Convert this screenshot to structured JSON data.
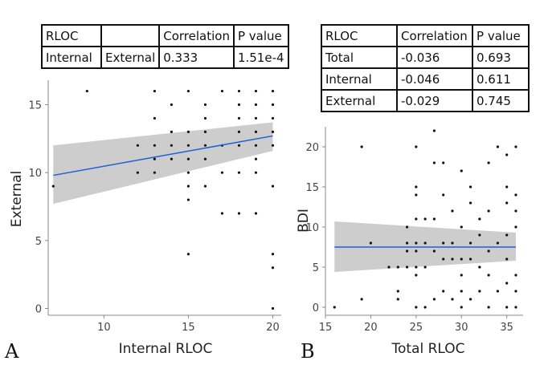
{
  "tableA": {
    "header": [
      "RLOC",
      "",
      "Correlation",
      "P value"
    ],
    "row": [
      "Internal",
      "External",
      "0.333",
      "1.51e-4"
    ]
  },
  "tableB": {
    "header": [
      "RLOC",
      "Correlation",
      "P value"
    ],
    "rows": [
      [
        "Total",
        "-0.036",
        "0.693"
      ],
      [
        "Internal",
        "-0.046",
        "0.611"
      ],
      [
        "External",
        "-0.029",
        "0.745"
      ]
    ]
  },
  "chart_data": [
    {
      "type": "scatter",
      "panel": "A",
      "xlabel": "Internal RLOC",
      "ylabel": "External",
      "xlim": [
        6.7,
        20.5
      ],
      "ylim": [
        -0.5,
        16.8
      ],
      "xticks": [
        10,
        15,
        20
      ],
      "yticks": [
        0,
        5,
        10,
        15
      ],
      "grid": false,
      "fit": {
        "x": [
          7,
          20
        ],
        "y": [
          9.8,
          12.7
        ],
        "ci_low": [
          7.7,
          11.6
        ],
        "ci_high": [
          12.0,
          13.7
        ]
      },
      "points": [
        [
          7,
          9
        ],
        [
          9,
          16
        ],
        [
          12,
          10
        ],
        [
          12,
          12
        ],
        [
          13,
          10
        ],
        [
          13,
          11
        ],
        [
          13,
          12
        ],
        [
          13,
          14
        ],
        [
          13,
          16
        ],
        [
          14,
          11
        ],
        [
          14,
          12
        ],
        [
          14,
          13
        ],
        [
          14,
          15
        ],
        [
          15,
          4
        ],
        [
          15,
          8
        ],
        [
          15,
          9
        ],
        [
          15,
          10
        ],
        [
          15,
          11
        ],
        [
          15,
          12
        ],
        [
          15,
          13
        ],
        [
          15,
          16
        ],
        [
          16,
          9
        ],
        [
          16,
          11
        ],
        [
          16,
          12
        ],
        [
          16,
          13
        ],
        [
          16,
          14
        ],
        [
          16,
          15
        ],
        [
          17,
          7
        ],
        [
          17,
          10
        ],
        [
          17,
          12
        ],
        [
          17,
          16
        ],
        [
          18,
          7
        ],
        [
          18,
          10
        ],
        [
          18,
          12
        ],
        [
          18,
          13
        ],
        [
          18,
          14
        ],
        [
          18,
          15
        ],
        [
          18,
          16
        ],
        [
          19,
          7
        ],
        [
          19,
          10
        ],
        [
          19,
          11
        ],
        [
          19,
          12
        ],
        [
          19,
          13
        ],
        [
          19,
          14
        ],
        [
          19,
          15
        ],
        [
          19,
          16
        ],
        [
          20,
          0
        ],
        [
          20,
          3
        ],
        [
          20,
          4
        ],
        [
          20,
          9
        ],
        [
          20,
          12
        ],
        [
          20,
          13
        ],
        [
          20,
          14
        ],
        [
          20,
          15
        ],
        [
          20,
          16
        ]
      ],
      "label": "A"
    },
    {
      "type": "scatter",
      "panel": "B",
      "xlabel": "Total RLOC",
      "ylabel": "BDI",
      "xlim": [
        15,
        36.8
      ],
      "ylim": [
        -1,
        22.5
      ],
      "xticks": [
        15,
        20,
        25,
        30,
        35
      ],
      "yticks": [
        0,
        5,
        10,
        15,
        20
      ],
      "grid": false,
      "fit": {
        "x": [
          16,
          36
        ],
        "y": [
          7.5,
          7.5
        ],
        "ci_low": [
          4.4,
          5.8
        ],
        "ci_high": [
          10.7,
          9.3
        ]
      },
      "points": [
        [
          16,
          0
        ],
        [
          19,
          1
        ],
        [
          19,
          20
        ],
        [
          20,
          8
        ],
        [
          22,
          5
        ],
        [
          23,
          1
        ],
        [
          23,
          2
        ],
        [
          23,
          5
        ],
        [
          24,
          5
        ],
        [
          24,
          7
        ],
        [
          24,
          8
        ],
        [
          24,
          10
        ],
        [
          25,
          0
        ],
        [
          25,
          4
        ],
        [
          25,
          5
        ],
        [
          25,
          7
        ],
        [
          25,
          8
        ],
        [
          25,
          11
        ],
        [
          25,
          14
        ],
        [
          25,
          15
        ],
        [
          25,
          20
        ],
        [
          26,
          0
        ],
        [
          26,
          5
        ],
        [
          26,
          8
        ],
        [
          26,
          11
        ],
        [
          27,
          1
        ],
        [
          27,
          7
        ],
        [
          27,
          11
        ],
        [
          27,
          18
        ],
        [
          27,
          22
        ],
        [
          28,
          2
        ],
        [
          28,
          6
        ],
        [
          28,
          8
        ],
        [
          28,
          14
        ],
        [
          28,
          18
        ],
        [
          29,
          1
        ],
        [
          29,
          6
        ],
        [
          29,
          8
        ],
        [
          29,
          12
        ],
        [
          30,
          0
        ],
        [
          30,
          2
        ],
        [
          30,
          4
        ],
        [
          30,
          6
        ],
        [
          30,
          10
        ],
        [
          30,
          17
        ],
        [
          31,
          1
        ],
        [
          31,
          6
        ],
        [
          31,
          8
        ],
        [
          31,
          13
        ],
        [
          31,
          15
        ],
        [
          32,
          2
        ],
        [
          32,
          5
        ],
        [
          32,
          9
        ],
        [
          32,
          11
        ],
        [
          33,
          0
        ],
        [
          33,
          4
        ],
        [
          33,
          7
        ],
        [
          33,
          12
        ],
        [
          33,
          18
        ],
        [
          34,
          2
        ],
        [
          34,
          8
        ],
        [
          34,
          20
        ],
        [
          35,
          0
        ],
        [
          35,
          3
        ],
        [
          35,
          6
        ],
        [
          35,
          9
        ],
        [
          35,
          13
        ],
        [
          35,
          15
        ],
        [
          35,
          19
        ],
        [
          36,
          0
        ],
        [
          36,
          2
        ],
        [
          36,
          4
        ],
        [
          36,
          10
        ],
        [
          36,
          12
        ],
        [
          36,
          14
        ],
        [
          36,
          20
        ]
      ],
      "label": "B"
    }
  ]
}
